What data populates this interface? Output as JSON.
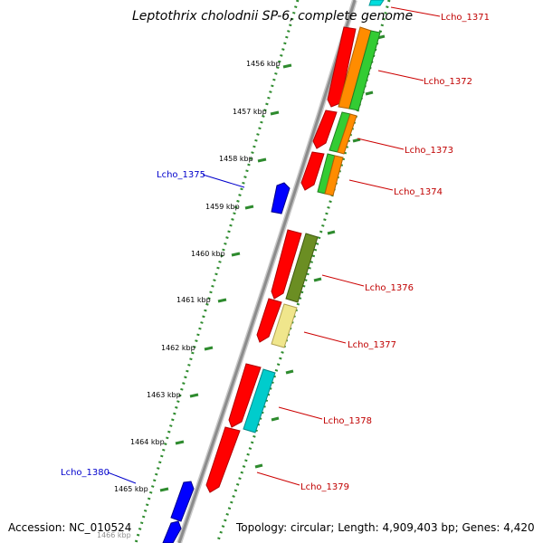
{
  "title": "Leptothrix cholodnii SP-6, complete genome",
  "accession": "Accession: NC_010524",
  "topology": "Topology: circular; Length: 4,909,403 bp; Genes: 4,420",
  "kbp_ticks": [
    "1456 kbp",
    "1457 kbp",
    "1458 kbp",
    "1459 kbp",
    "1460 kbp",
    "1461 kbp",
    "1462 kbp",
    "1463 kbp",
    "1464 kbp",
    "1465 kbp",
    "1466 kbp"
  ],
  "gene_labels": {
    "lcho_1371": "Lcho_1371",
    "lcho_1372": "Lcho_1372",
    "lcho_1373": "Lcho_1373",
    "lcho_1374": "Lcho_1374",
    "lcho_1375": "Lcho_1375",
    "lcho_1376": "Lcho_1376",
    "lcho_1377": "Lcho_1377",
    "lcho_1378": "Lcho_1378",
    "lcho_1379": "Lcho_1379",
    "lcho_1380": "Lcho_1380"
  },
  "colors": {
    "backbone": "#9a9a9a",
    "tick_green": "#2e8b2e",
    "red": "#ff0000",
    "blue": "#0000ff",
    "orange": "#ff8c00",
    "light_green": "#33cc33",
    "cyan": "#00cccc",
    "olive": "#6b8e23",
    "pale_yellow": "#f0e68c",
    "label_red": "#cc0000",
    "label_blue": "#0000cc"
  }
}
